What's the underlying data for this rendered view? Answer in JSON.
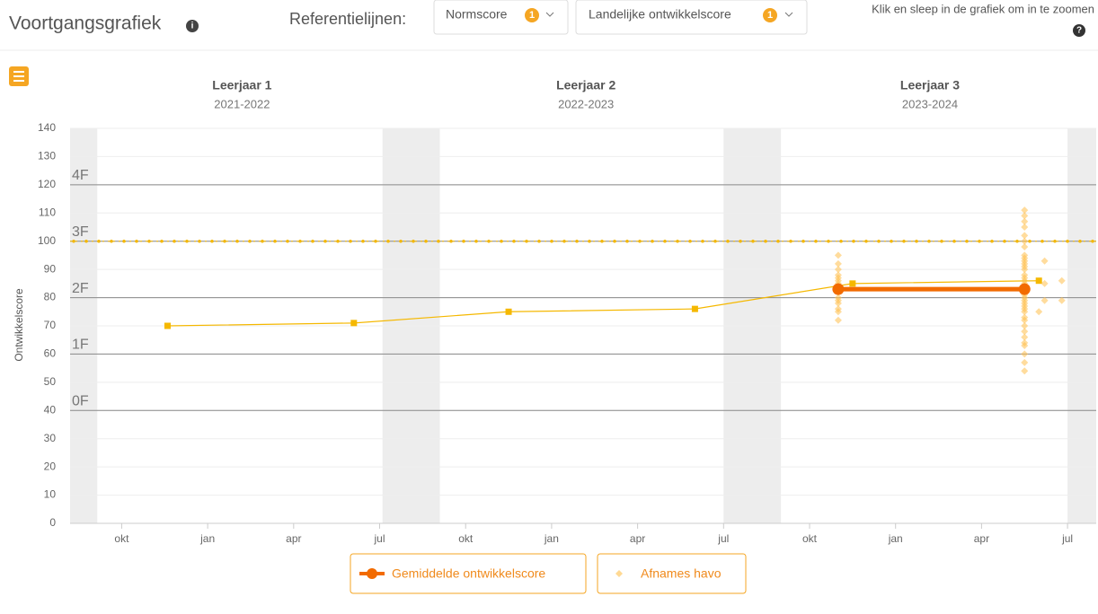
{
  "header": {
    "title": "Voortgangsgrafiek",
    "reference_label": "Referentielijnen:",
    "dropdowns": [
      {
        "label": "Normscore",
        "badge": 1
      },
      {
        "label": "Landelijke ontwikkelscore",
        "badge": 1
      }
    ],
    "hint": "Klik en sleep in de grafiek om in te zoomen"
  },
  "chart_data": {
    "type": "line",
    "ylabel": "Ontwikkelscore",
    "years": [
      {
        "label": "Leerjaar 1",
        "period": "2021-2022"
      },
      {
        "label": "Leerjaar 2",
        "period": "2022-2023"
      },
      {
        "label": "Leerjaar 3",
        "period": "2023-2024"
      }
    ],
    "xlim": [
      0.2,
      36
    ],
    "xticks": [
      {
        "value": 2,
        "label": "okt"
      },
      {
        "value": 5,
        "label": "jan"
      },
      {
        "value": 8,
        "label": "apr"
      },
      {
        "value": 11,
        "label": "jul"
      },
      {
        "value": 14,
        "label": "okt"
      },
      {
        "value": 17,
        "label": "jan"
      },
      {
        "value": 20,
        "label": "apr"
      },
      {
        "value": 23,
        "label": "jul"
      },
      {
        "value": 26,
        "label": "okt"
      },
      {
        "value": 29,
        "label": "jan"
      },
      {
        "value": 32,
        "label": "apr"
      },
      {
        "value": 35,
        "label": "jul"
      }
    ],
    "ylim": [
      0,
      140
    ],
    "yticks": [
      0,
      10,
      20,
      30,
      40,
      50,
      60,
      70,
      80,
      90,
      100,
      110,
      120,
      130,
      140
    ],
    "grid": true,
    "shaded_periods": [
      [
        0.2,
        1.15
      ],
      [
        11.1,
        13.1
      ],
      [
        23,
        25
      ],
      [
        35,
        36
      ]
    ],
    "reference_lines": [
      {
        "label": "4F",
        "value": 120
      },
      {
        "label": "3F",
        "value": 100
      },
      {
        "label": "2F",
        "value": 80
      },
      {
        "label": "1F",
        "value": 60
      },
      {
        "label": "0F",
        "value": 40
      }
    ],
    "norm_line": {
      "value": 100,
      "color": "#f5b800"
    },
    "reference_series": {
      "color": "#f5b800",
      "x": [
        3.6,
        10.1,
        15.5,
        22.0,
        27.5,
        34.0
      ],
      "values": [
        70,
        71,
        75,
        76,
        85,
        86
      ]
    },
    "series": [
      {
        "name": "Gemiddelde ontwikkelscore",
        "type": "line",
        "color": "#f26b00",
        "x": [
          27.0,
          33.5
        ],
        "values": [
          83,
          83
        ]
      },
      {
        "name": "Afnames havo",
        "type": "scatter",
        "color": "#ffc04d",
        "x": [
          27,
          27,
          27,
          27,
          27,
          27,
          27,
          27,
          27,
          27,
          27,
          27,
          27,
          27,
          27,
          27,
          33.5,
          33.5,
          33.5,
          33.5,
          33.5,
          33.5,
          33.5,
          33.5,
          33.5,
          33.5,
          33.5,
          33.5,
          33.5,
          33.5,
          33.5,
          33.5,
          33.5,
          33.5,
          33.5,
          33.5,
          33.5,
          33.5,
          33.5,
          33.5,
          33.5,
          33.5,
          33.5,
          33.5,
          33.5,
          33.5,
          33.5,
          33.5,
          33.5,
          33.5,
          33.5,
          33.5,
          33.5,
          34.2,
          34.2,
          34.2,
          34.8,
          34.8,
          34.0
        ],
        "values": [
          95,
          92,
          90,
          88,
          87,
          86,
          85,
          84,
          83,
          82,
          80,
          79,
          78,
          76,
          75,
          72,
          111,
          109,
          107,
          105,
          102,
          100,
          98,
          95,
          94,
          93,
          92,
          91,
          90,
          88,
          87,
          86,
          85,
          84,
          83,
          82,
          81,
          80,
          79,
          78,
          77,
          76,
          75,
          73,
          72,
          70,
          68,
          66,
          64,
          63,
          60,
          57,
          54,
          93,
          85,
          79,
          86,
          79,
          75
        ]
      }
    ]
  }
}
